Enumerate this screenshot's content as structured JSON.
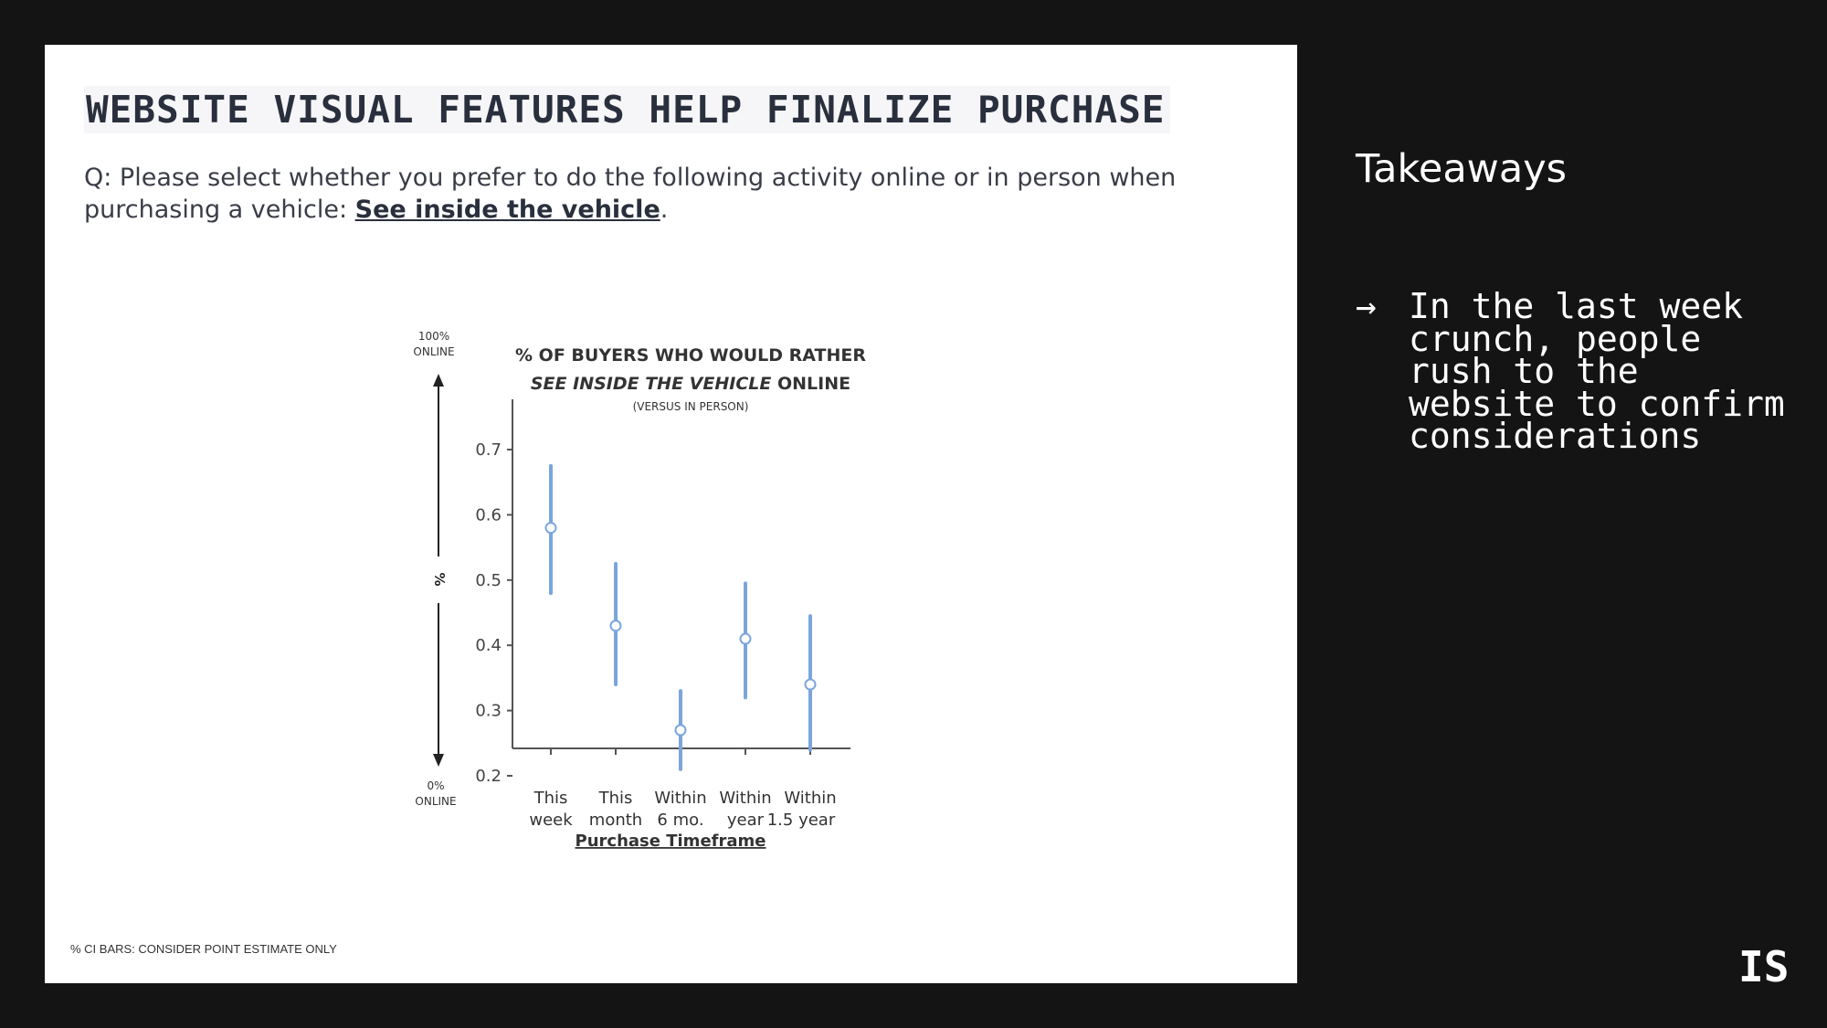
{
  "slide": {
    "title": "WEBSITE VISUAL FEATURES HELP FINALIZE PURCHASE",
    "question_prefix": "Q: Please select whether you prefer to do the following activity online or in person when purchasing a vehicle: ",
    "question_link": "See inside the vehicle",
    "question_suffix": ".",
    "footnote": "% CI BARS: CONSIDER POINT ESTIMATE ONLY"
  },
  "sidebar": {
    "heading": "Takeaways",
    "bullet_icon": "arrow-right-icon",
    "bullet_symbol": "→",
    "bullets": [
      "In the last week crunch, people rush to the website to confirm considerations"
    ],
    "logo": "IS"
  },
  "chart_data": {
    "type": "scatter",
    "title_line1": "% OF BUYERS WHO WOULD RATHER",
    "title_line2_italic": "SEE INSIDE THE VEHICLE",
    "title_line2_rest": " ONLINE",
    "subtitle": "(VERSUS IN PERSON)",
    "xlabel": "Purchase Timeframe",
    "ylabel": "%",
    "y_top_label": [
      "100%",
      "ONLINE"
    ],
    "y_bottom_label": [
      "0%",
      "ONLINE"
    ],
    "categories": [
      [
        "This",
        "week"
      ],
      [
        "This",
        "month"
      ],
      [
        "Within",
        "6 mo."
      ],
      [
        "Within",
        "year"
      ],
      [
        "Within",
        "1.5 year"
      ]
    ],
    "points": [
      {
        "value": 0.58,
        "ci_low": 0.48,
        "ci_high": 0.675
      },
      {
        "value": 0.43,
        "ci_low": 0.34,
        "ci_high": 0.525
      },
      {
        "value": 0.27,
        "ci_low": 0.21,
        "ci_high": 0.33
      },
      {
        "value": 0.41,
        "ci_low": 0.32,
        "ci_high": 0.495
      },
      {
        "value": 0.34,
        "ci_low": 0.24,
        "ci_high": 0.445
      }
    ],
    "yticks": [
      "0.2",
      "0.3",
      "0.4",
      "0.5",
      "0.6",
      "0.7"
    ],
    "ylim": [
      0.175,
      0.7
    ],
    "grid": false,
    "colors": {
      "bar": "#7aa5dd",
      "marker_fill": "#ffffff",
      "marker_stroke": "#7aa5dd",
      "axis": "#555555"
    }
  }
}
